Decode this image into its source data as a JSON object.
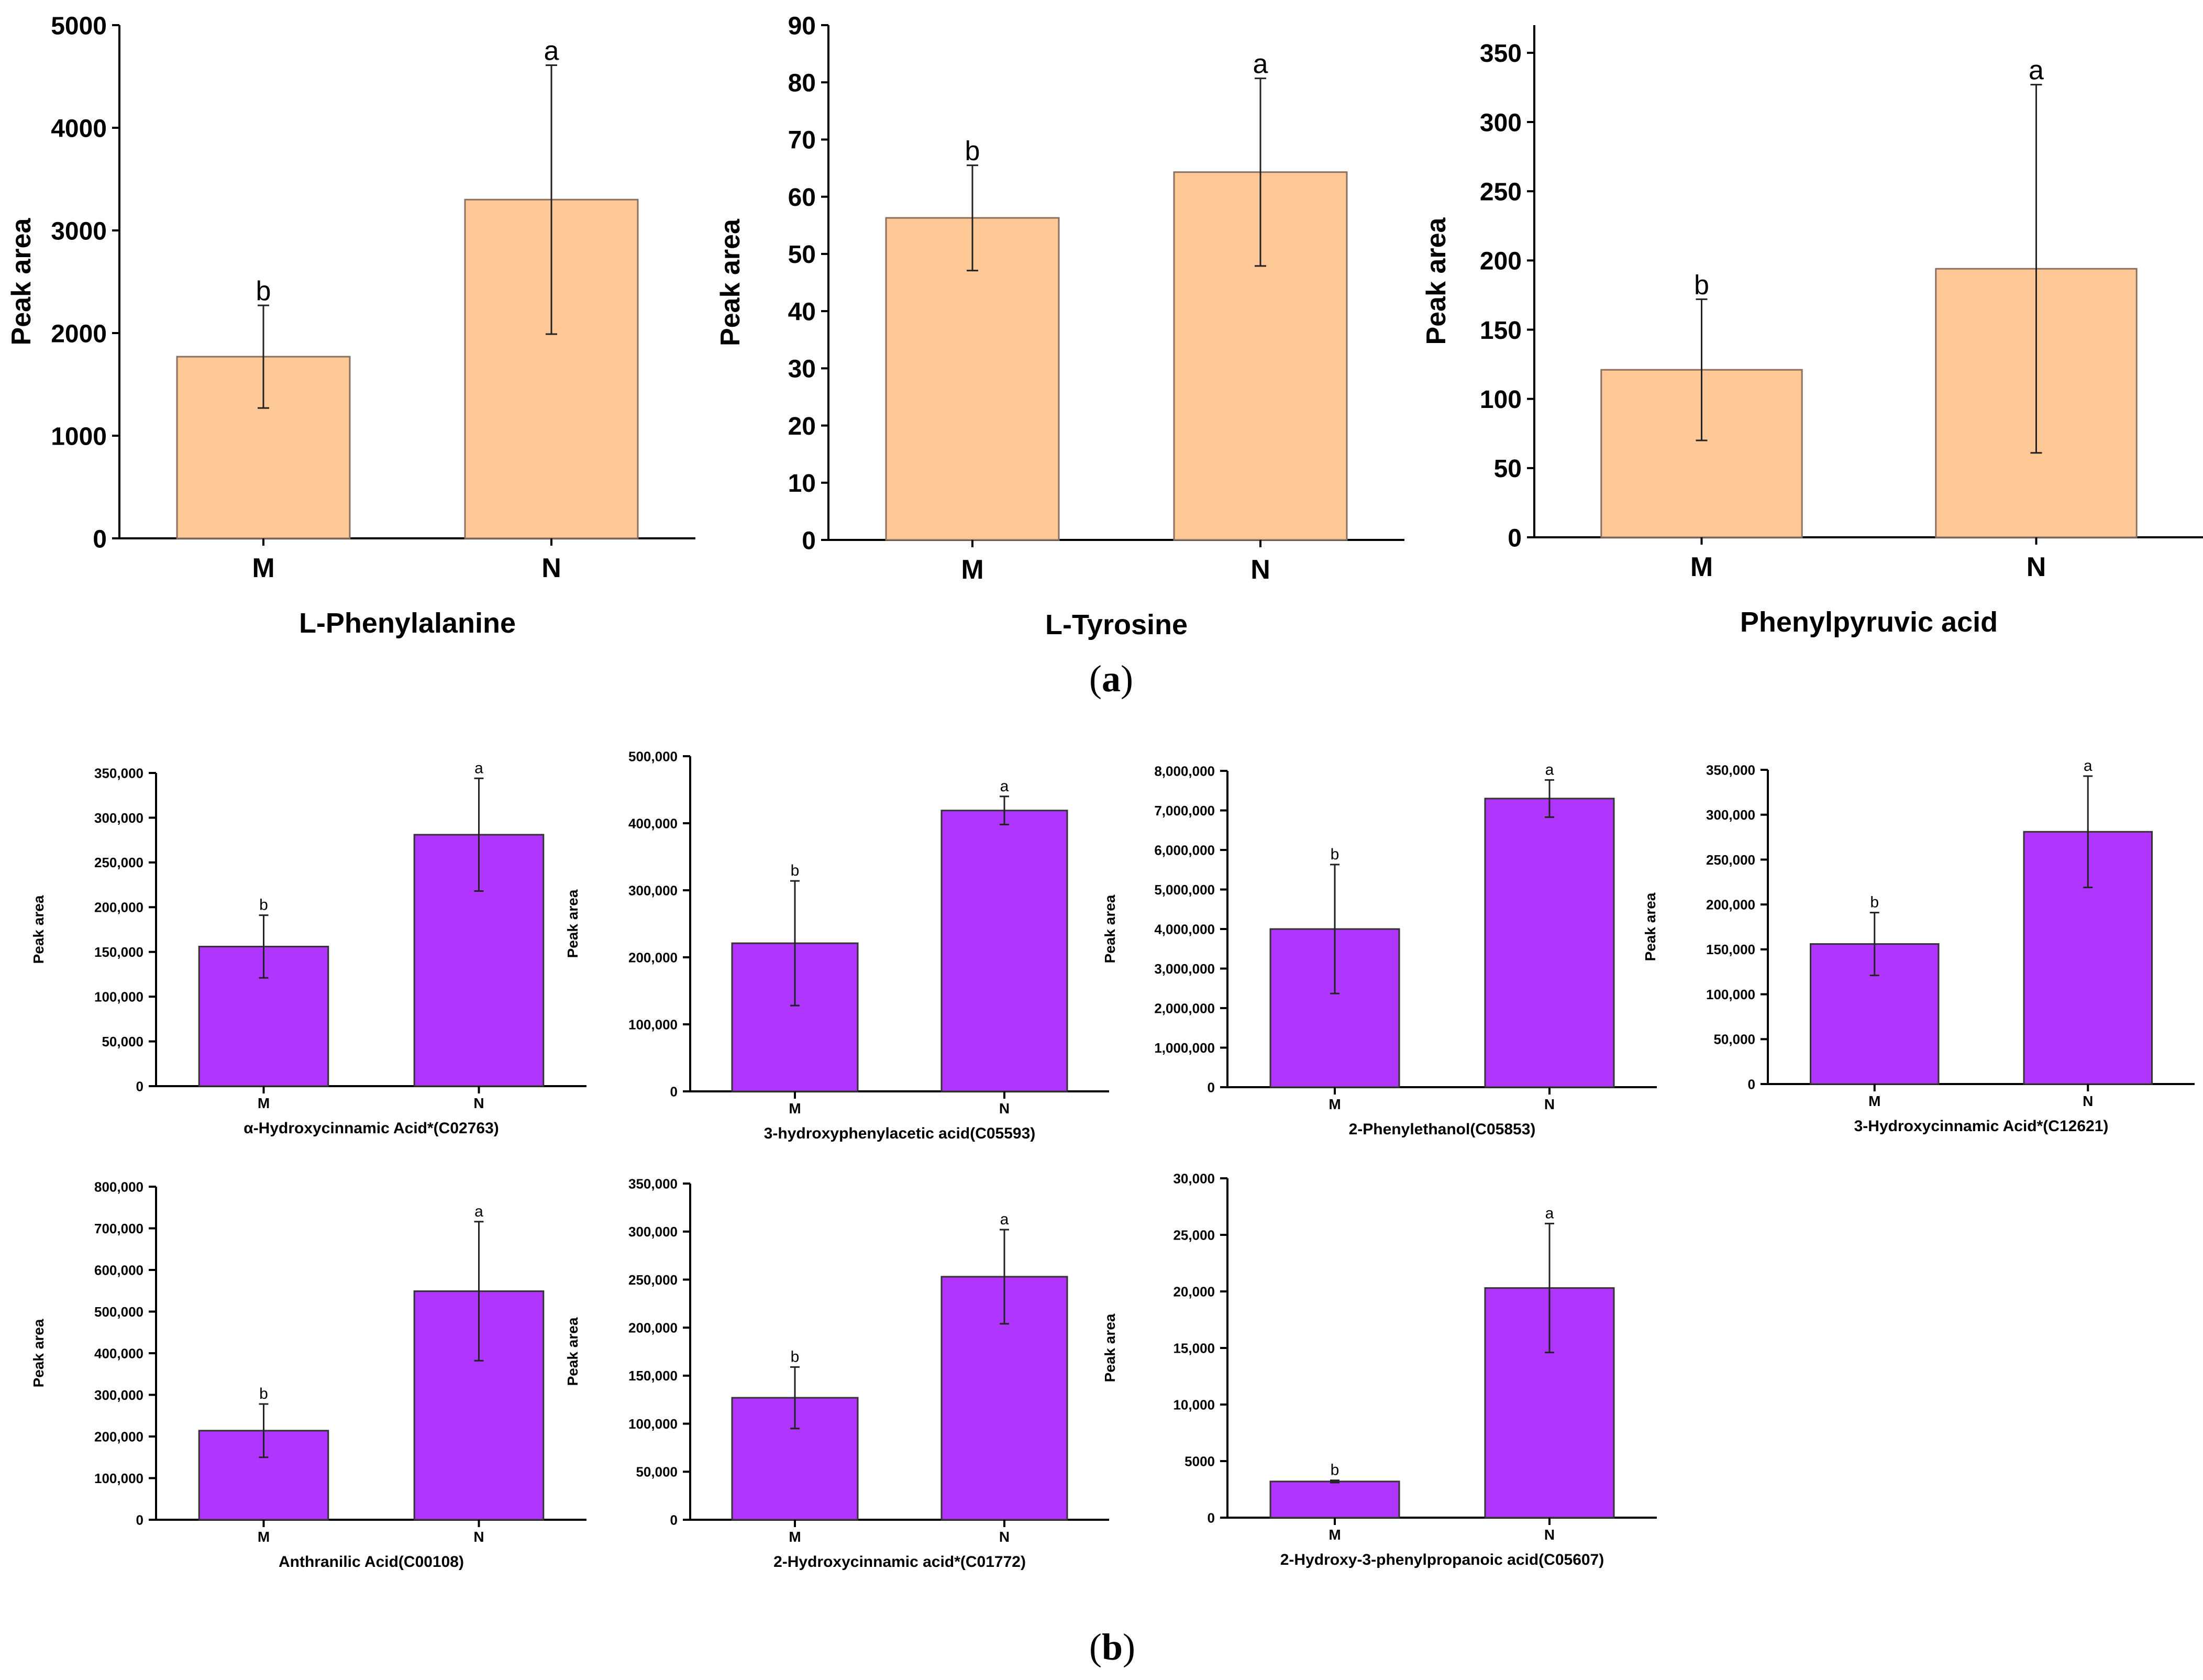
{
  "panel_labels": {
    "a": "(a)",
    "a_letter": "a",
    "b": "(b)",
    "b_letter": "b"
  },
  "colors": {
    "top_bar": "#FFC896",
    "top_edge": "#8A7060",
    "bottom_bar": "#B036FF",
    "bottom_edge": "#333333"
  },
  "chart_data": [
    {
      "type": "bar",
      "panel": "a",
      "title": "L-Phenylalanine",
      "xlabel": "L-Phenylalanine",
      "ylabel": "Peak area",
      "categories": [
        "M",
        "N"
      ],
      "values": [
        1770,
        3300
      ],
      "errors": [
        500,
        1310
      ],
      "significance": [
        "b",
        "a"
      ],
      "ylim": [
        0,
        5000
      ],
      "yticks": [
        0,
        1000,
        2000,
        3000,
        4000,
        5000
      ],
      "ytick_labels": [
        "0",
        "1000",
        "2000",
        "3000",
        "4000",
        "5000"
      ]
    },
    {
      "type": "bar",
      "panel": "a",
      "title": "L-Tyrosine",
      "xlabel": "L-Tyrosine",
      "ylabel": "Peak area",
      "categories": [
        "M",
        "N"
      ],
      "values": [
        56.3,
        64.3
      ],
      "errors": [
        9.2,
        16.4
      ],
      "significance": [
        "b",
        "a"
      ],
      "ylim": [
        0,
        90
      ],
      "yticks": [
        0,
        10,
        20,
        30,
        40,
        50,
        60,
        70,
        80,
        90
      ],
      "ytick_labels": [
        "0",
        "10",
        "20",
        "30",
        "40",
        "50",
        "60",
        "70",
        "80",
        "90"
      ]
    },
    {
      "type": "bar",
      "panel": "a",
      "title": "Phenylpyruvic acid",
      "xlabel": "Phenylpyruvic acid",
      "ylabel": "Peak area",
      "categories": [
        "M",
        "N"
      ],
      "values": [
        121,
        194
      ],
      "errors": [
        51,
        133
      ],
      "significance": [
        "b",
        "a"
      ],
      "ylim": [
        0,
        370
      ],
      "yticks": [
        0,
        50,
        100,
        150,
        200,
        250,
        300,
        350
      ],
      "ytick_labels": [
        "0",
        "50",
        "100",
        "150",
        "200",
        "250",
        "300",
        "350"
      ]
    },
    {
      "type": "bar",
      "panel": "b",
      "title": "α-Hydroxycinnamic Acid*(C02763)",
      "xlabel": "α-Hydroxycinnamic Acid*(C02763)",
      "ylabel": "Peak area",
      "categories": [
        "M",
        "N"
      ],
      "values": [
        156000,
        281000
      ],
      "errors": [
        35000,
        63000
      ],
      "significance": [
        "b",
        "a"
      ],
      "ylim": [
        0,
        350000
      ],
      "yticks": [
        0,
        50000,
        100000,
        150000,
        200000,
        250000,
        300000,
        350000
      ],
      "ytick_labels": [
        "0",
        "50,000",
        "100,000",
        "150,000",
        "200,000",
        "250,000",
        "300,000",
        "350,000"
      ]
    },
    {
      "type": "bar",
      "panel": "b",
      "title": "3-hydroxyphenylacetic acid(C05593)",
      "xlabel": "3-hydroxyphenylacetic acid(C05593)",
      "ylabel": "Peak area",
      "categories": [
        "M",
        "N"
      ],
      "values": [
        221000,
        419000
      ],
      "errors": [
        93000,
        21000
      ],
      "significance": [
        "b",
        "a"
      ],
      "ylim": [
        0,
        500000
      ],
      "yticks": [
        0,
        100000,
        200000,
        300000,
        400000,
        500000
      ],
      "ytick_labels": [
        "0",
        "100,000",
        "200,000",
        "300,000",
        "400,000",
        "500,000"
      ]
    },
    {
      "type": "bar",
      "panel": "b",
      "title": "2-Phenylethanol(C05853)",
      "xlabel": "2-Phenylethanol(C05853)",
      "ylabel": "Peak area",
      "categories": [
        "M",
        "N"
      ],
      "values": [
        4000000,
        7300000
      ],
      "errors": [
        1630000,
        470000
      ],
      "significance": [
        "b",
        "a"
      ],
      "ylim": [
        0,
        8000000
      ],
      "yticks": [
        0,
        1000000,
        2000000,
        3000000,
        4000000,
        5000000,
        6000000,
        7000000,
        8000000
      ],
      "ytick_labels": [
        "0",
        "1,000,000",
        "2,000,000",
        "3,000,000",
        "4,000,000",
        "5,000,000",
        "6,000,000",
        "7,000,000",
        "8,000,000"
      ]
    },
    {
      "type": "bar",
      "panel": "b",
      "title": "3-Hydroxycinnamic Acid*(C12621)",
      "xlabel": "3-Hydroxycinnamic Acid*(C12621)",
      "ylabel": "Peak area",
      "categories": [
        "M",
        "N"
      ],
      "values": [
        156000,
        281000
      ],
      "errors": [
        35000,
        62000
      ],
      "significance": [
        "b",
        "a"
      ],
      "ylim": [
        0,
        350000
      ],
      "yticks": [
        0,
        50000,
        100000,
        150000,
        200000,
        250000,
        300000,
        350000
      ],
      "ytick_labels": [
        "0",
        "50,000",
        "100,000",
        "150,000",
        "200,000",
        "250,000",
        "300,000",
        "350,000"
      ]
    },
    {
      "type": "bar",
      "panel": "b",
      "title": "Anthranilic Acid(C00108)",
      "xlabel": "Anthranilic Acid(C00108)",
      "ylabel": "Peak area",
      "categories": [
        "M",
        "N"
      ],
      "values": [
        214000,
        549000
      ],
      "errors": [
        64000,
        167000
      ],
      "significance": [
        "b",
        "a"
      ],
      "ylim": [
        0,
        800000
      ],
      "yticks": [
        0,
        100000,
        200000,
        300000,
        400000,
        500000,
        600000,
        700000,
        800000
      ],
      "ytick_labels": [
        "0",
        "100,000",
        "200,000",
        "300,000",
        "400,000",
        "500,000",
        "600,000",
        "700,000",
        "800,000"
      ]
    },
    {
      "type": "bar",
      "panel": "b",
      "title": "2-Hydroxycinnamic acid*(C01772)",
      "xlabel": "2-Hydroxycinnamic acid*(C01772)",
      "ylabel": "Peak area",
      "categories": [
        "M",
        "N"
      ],
      "values": [
        127000,
        253000
      ],
      "errors": [
        32000,
        49000
      ],
      "significance": [
        "b",
        "a"
      ],
      "ylim": [
        0,
        350000
      ],
      "yticks": [
        0,
        50000,
        100000,
        150000,
        200000,
        250000,
        300000,
        350000
      ],
      "ytick_labels": [
        "0",
        "50,000",
        "100,000",
        "150,000",
        "200,000",
        "250,000",
        "300,000",
        "350,000"
      ]
    },
    {
      "type": "bar",
      "panel": "b",
      "title": "2-Hydroxy-3-phenylpropanoic acid(C05607)",
      "xlabel": "2-Hydroxy-3-phenylpropanoic acid(C05607)",
      "ylabel": "Peak area",
      "categories": [
        "M",
        "N"
      ],
      "values": [
        3200,
        20300
      ],
      "errors": [
        100,
        5700
      ],
      "significance": [
        "b",
        "a"
      ],
      "ylim": [
        0,
        30000
      ],
      "yticks": [
        0,
        5000,
        10000,
        15000,
        20000,
        25000,
        30000
      ],
      "ytick_labels": [
        "0",
        "5000",
        "10,000",
        "15,000",
        "20,000",
        "25,000",
        "30,000"
      ]
    }
  ]
}
